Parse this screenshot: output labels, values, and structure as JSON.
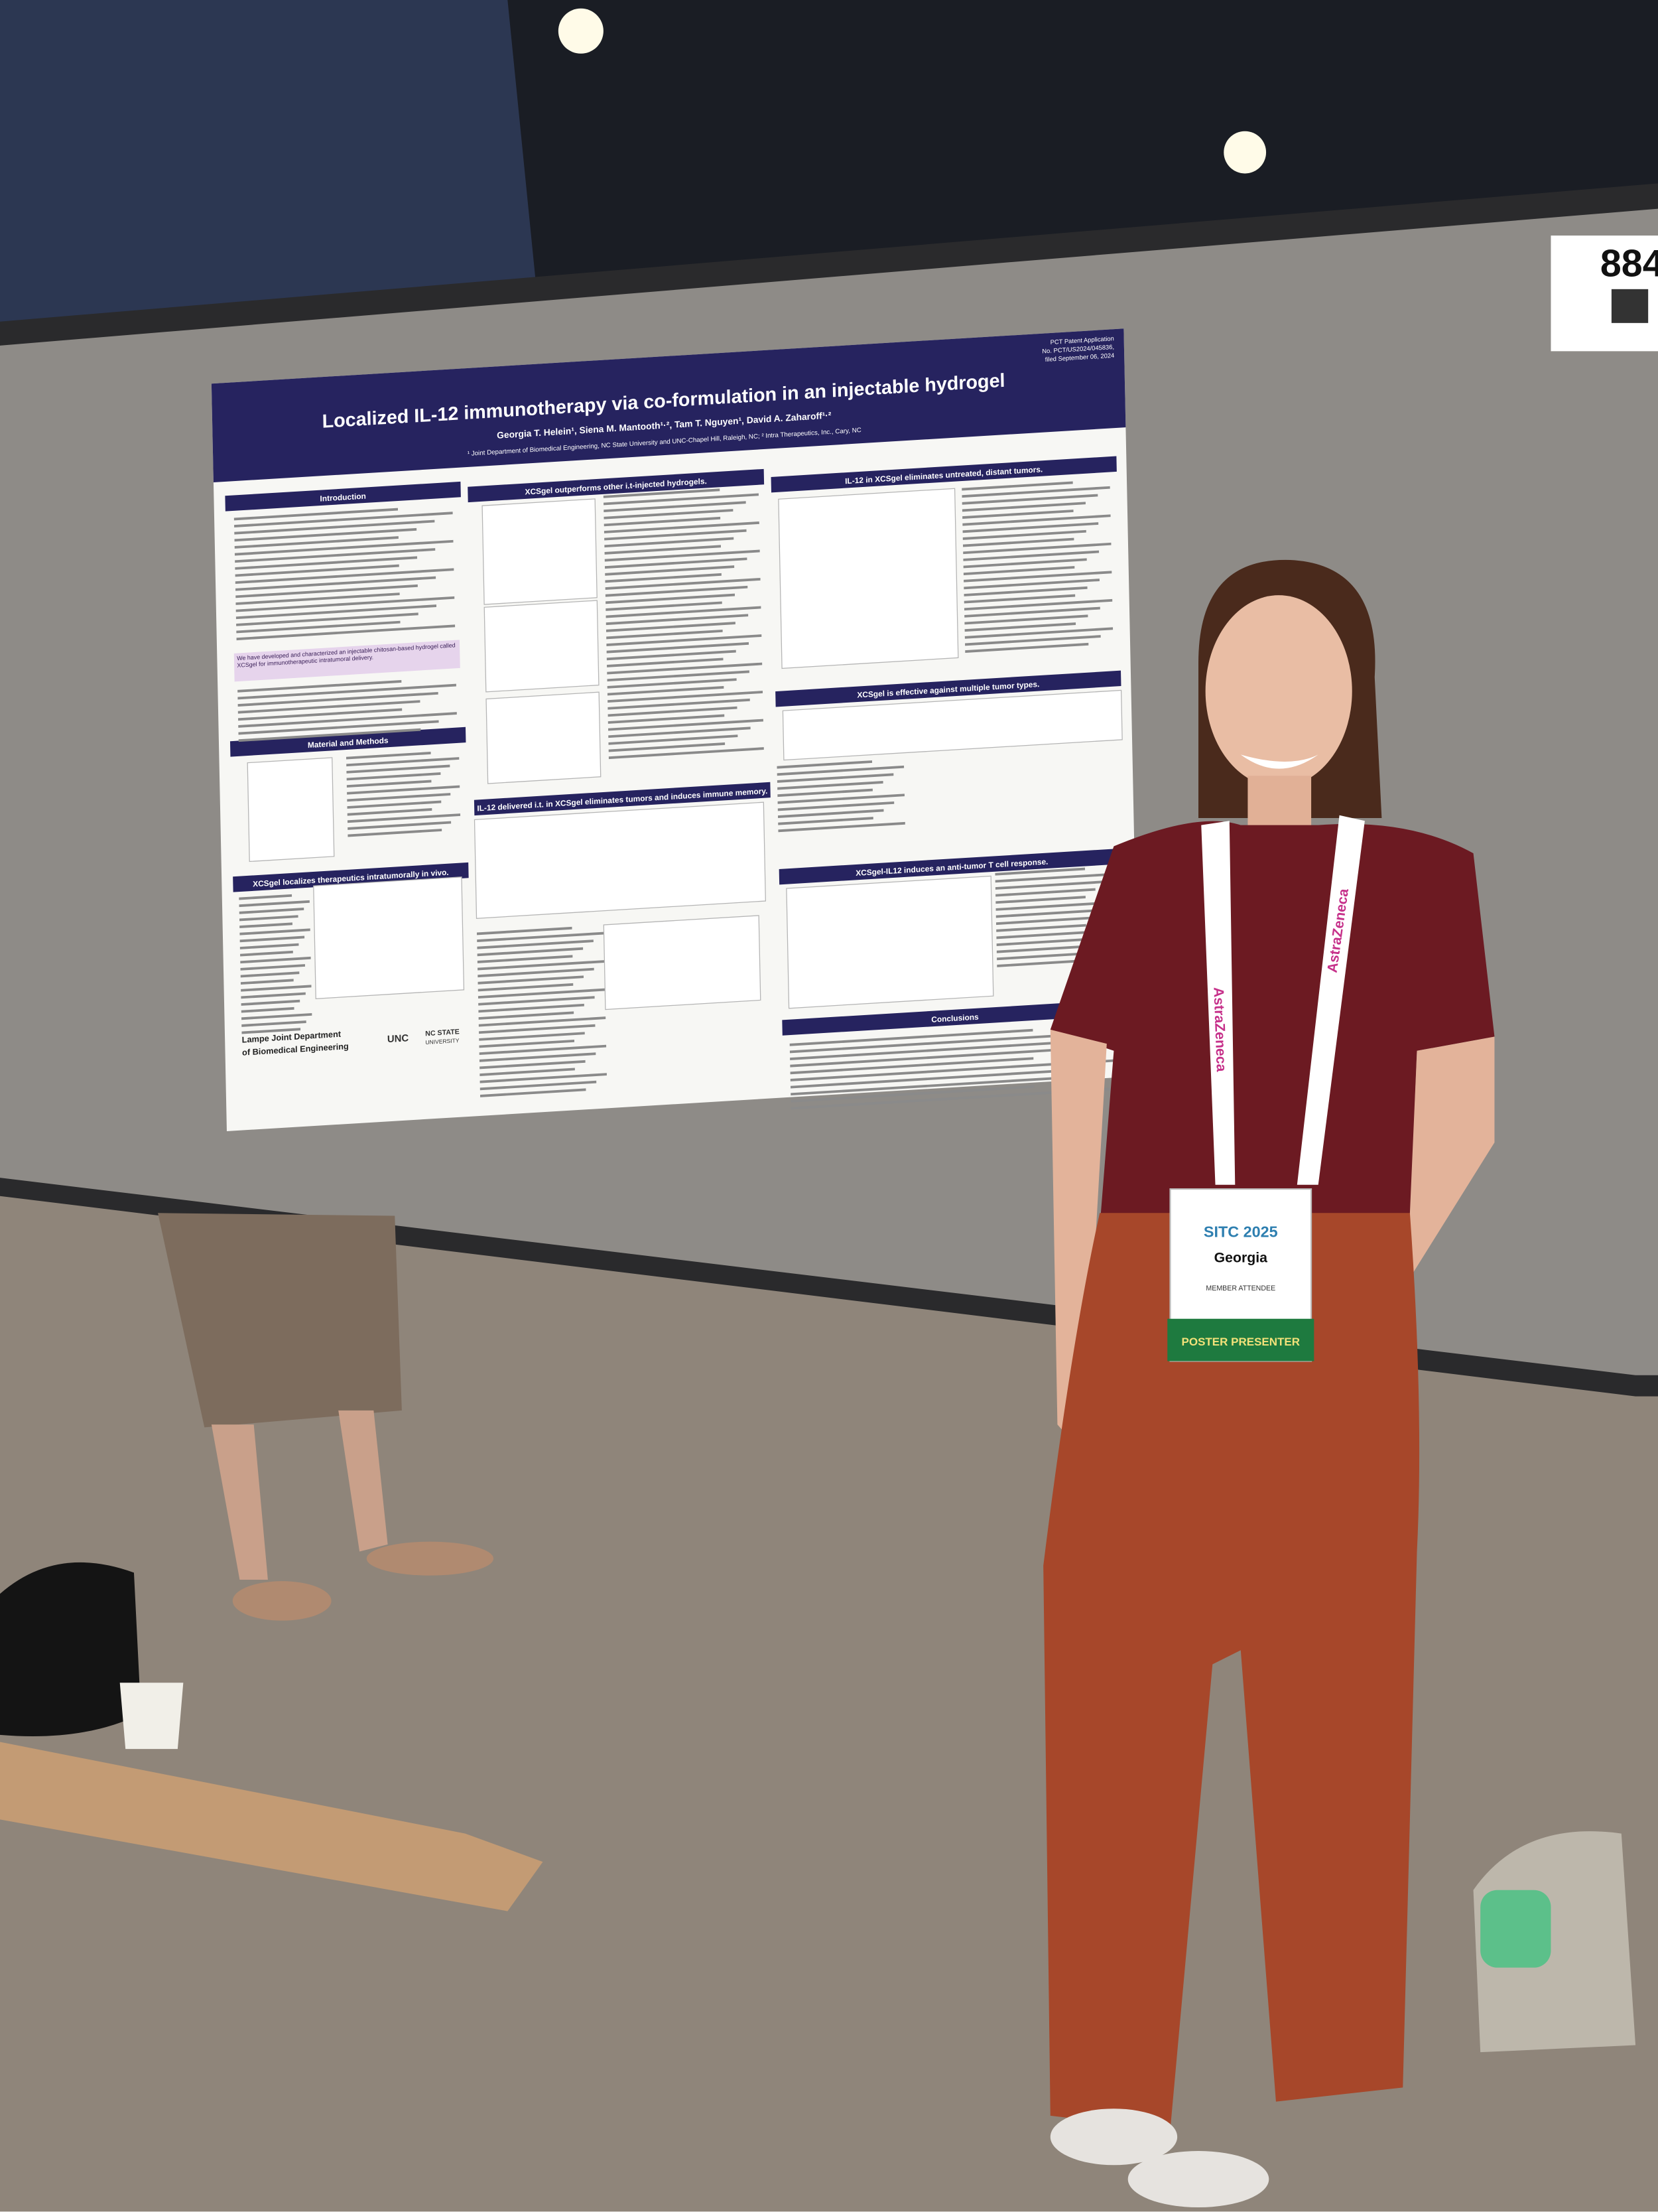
{
  "board_sign": {
    "number": "884"
  },
  "poster": {
    "patent": [
      "PCT Patent Application",
      "No. PCT/US2024/045836,",
      "filed September 06, 2024"
    ],
    "title": "Localized IL-12 immunotherapy via co-formulation in an injectable hydrogel",
    "authors": "Georgia T. Helein¹, Siena M. Mantooth¹·², Tam T. Nguyen¹, David A. Zaharoff¹·²",
    "affiliation": "¹ Joint Department of Biomedical Engineering, NC State University and UNC-Chapel Hill, Raleigh, NC; ² Intra Therapeutics, Inc., Cary, NC",
    "sections": [
      {
        "heading": "Introduction"
      },
      {
        "heading": "Material and Methods"
      },
      {
        "heading": "XCSgel localizes therapeutics intratumorally in vivo."
      },
      {
        "heading": "XCSgel outperforms other i.t-injected hydrogels."
      },
      {
        "heading": "IL-12 delivered i.t. in XCSgel eliminates tumors and induces immune memory."
      },
      {
        "heading": "IL-12 in XCSgel eliminates untreated, distant tumors."
      },
      {
        "heading": "XCSgel is effective against multiple tumor types."
      },
      {
        "heading": "XCSgel-IL12 induces an anti-tumor T cell response."
      },
      {
        "heading": "Conclusions"
      }
    ],
    "highlight": "We have developed and characterized an injectable chitosan-based hydrogel called XCSgel for immunotherapeutic intratumoral delivery.",
    "footer": [
      "Lampe Joint Department",
      "of Biomedical Engineering"
    ],
    "logos": [
      "UNC",
      "NC STATE",
      "UNIVERSITY"
    ]
  },
  "badge": {
    "event": "SITC 2025",
    "name": "Georgia",
    "type": "MEMBER ATTENDEE",
    "role": "POSTER PRESENTER"
  },
  "lanyard": "AstraZeneca"
}
